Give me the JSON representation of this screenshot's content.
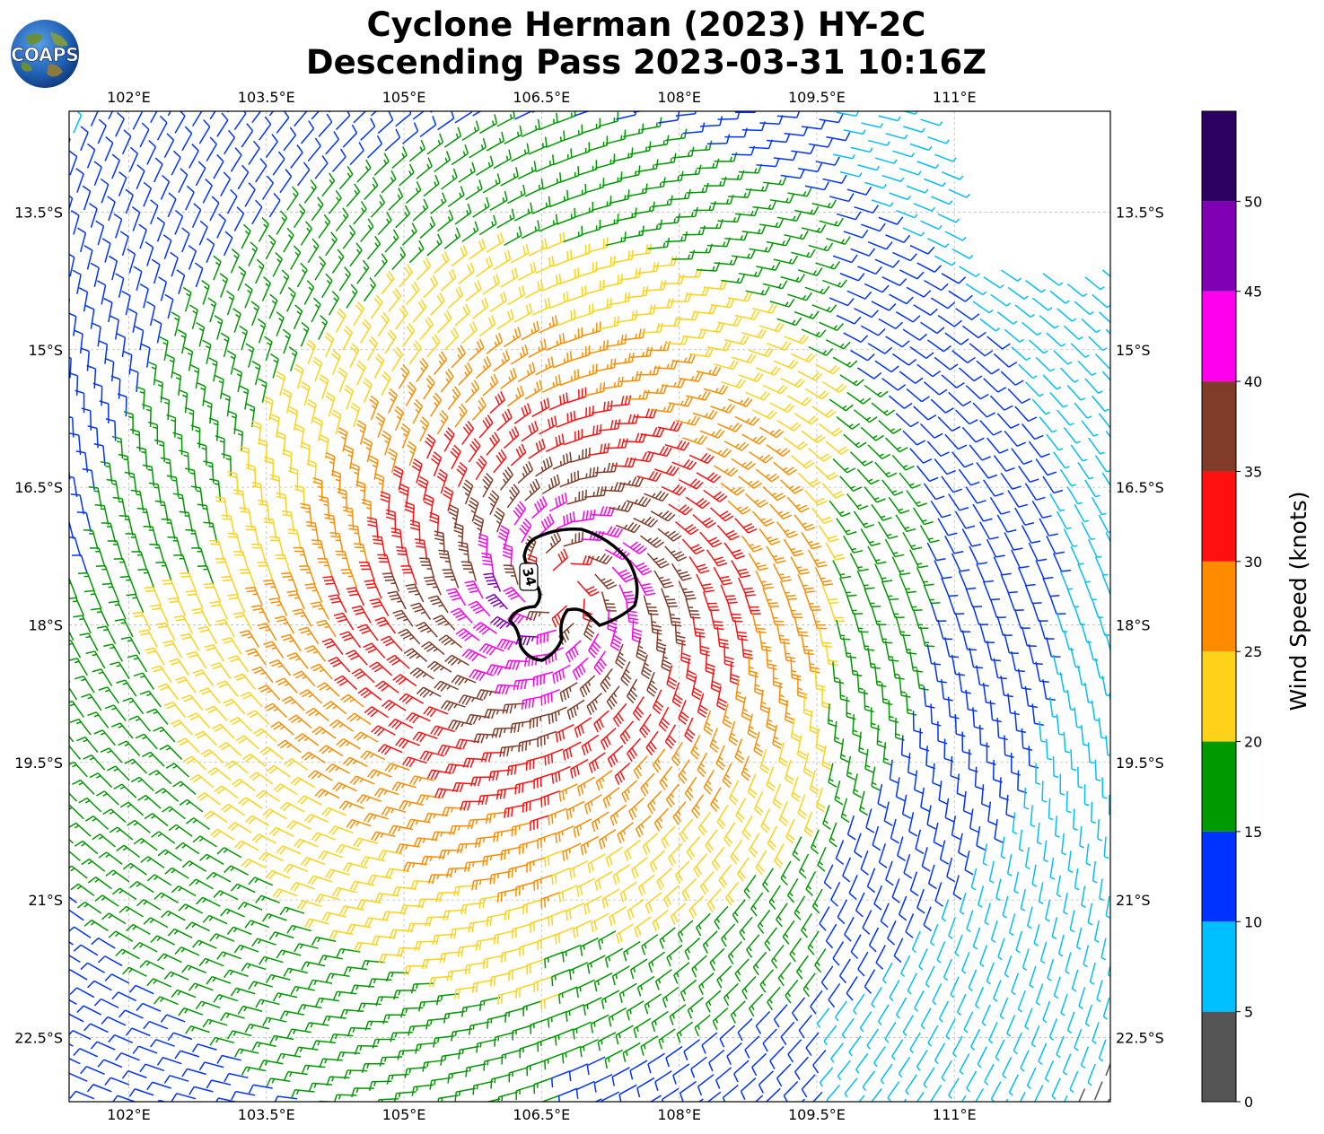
{
  "header": {
    "title_line1": "Cyclone Herman (2023) HY-2C",
    "title_line2": "Descending Pass 2023-03-31 10:16Z"
  },
  "logo": {
    "text": "COAPS"
  },
  "map": {
    "lon_range": [
      101.35,
      112.7
    ],
    "lat_range": [
      -12.4,
      -23.2
    ],
    "lon_ticks": [
      "102°E",
      "103.5°E",
      "105°E",
      "106.5°E",
      "108°E",
      "109.5°E",
      "111°E"
    ],
    "lon_tick_values": [
      102,
      103.5,
      105,
      106.5,
      108,
      109.5,
      111
    ],
    "lat_ticks": [
      "13.5°S",
      "15°S",
      "16.5°S",
      "18°S",
      "19.5°S",
      "21°S",
      "22.5°S"
    ],
    "lat_tick_values": [
      -13.5,
      -15,
      -16.5,
      -18,
      -19.5,
      -21,
      -22.5
    ],
    "grid": true,
    "cyclone_center": {
      "lon": 106.7,
      "lat": -17.6
    },
    "contour_label": "34"
  },
  "colorbar": {
    "label": "Wind Speed (knots)",
    "ticks": [
      "0",
      "5",
      "10",
      "15",
      "20",
      "25",
      "30",
      "35",
      "40",
      "45",
      "50"
    ],
    "bins": [
      {
        "min": 0,
        "max": 5,
        "color": "#555555"
      },
      {
        "min": 5,
        "max": 10,
        "color": "#00bfff"
      },
      {
        "min": 10,
        "max": 15,
        "color": "#0033ff"
      },
      {
        "min": 15,
        "max": 20,
        "color": "#009900"
      },
      {
        "min": 20,
        "max": 25,
        "color": "#ffd21a"
      },
      {
        "min": 25,
        "max": 30,
        "color": "#ff8c00"
      },
      {
        "min": 30,
        "max": 35,
        "color": "#ff1010"
      },
      {
        "min": 35,
        "max": 40,
        "color": "#803c28"
      },
      {
        "min": 40,
        "max": 45,
        "color": "#ff00ee"
      },
      {
        "min": 45,
        "max": 50,
        "color": "#8000b4"
      },
      {
        "min": 50,
        "max": 55,
        "color": "#2b0060"
      }
    ]
  }
}
